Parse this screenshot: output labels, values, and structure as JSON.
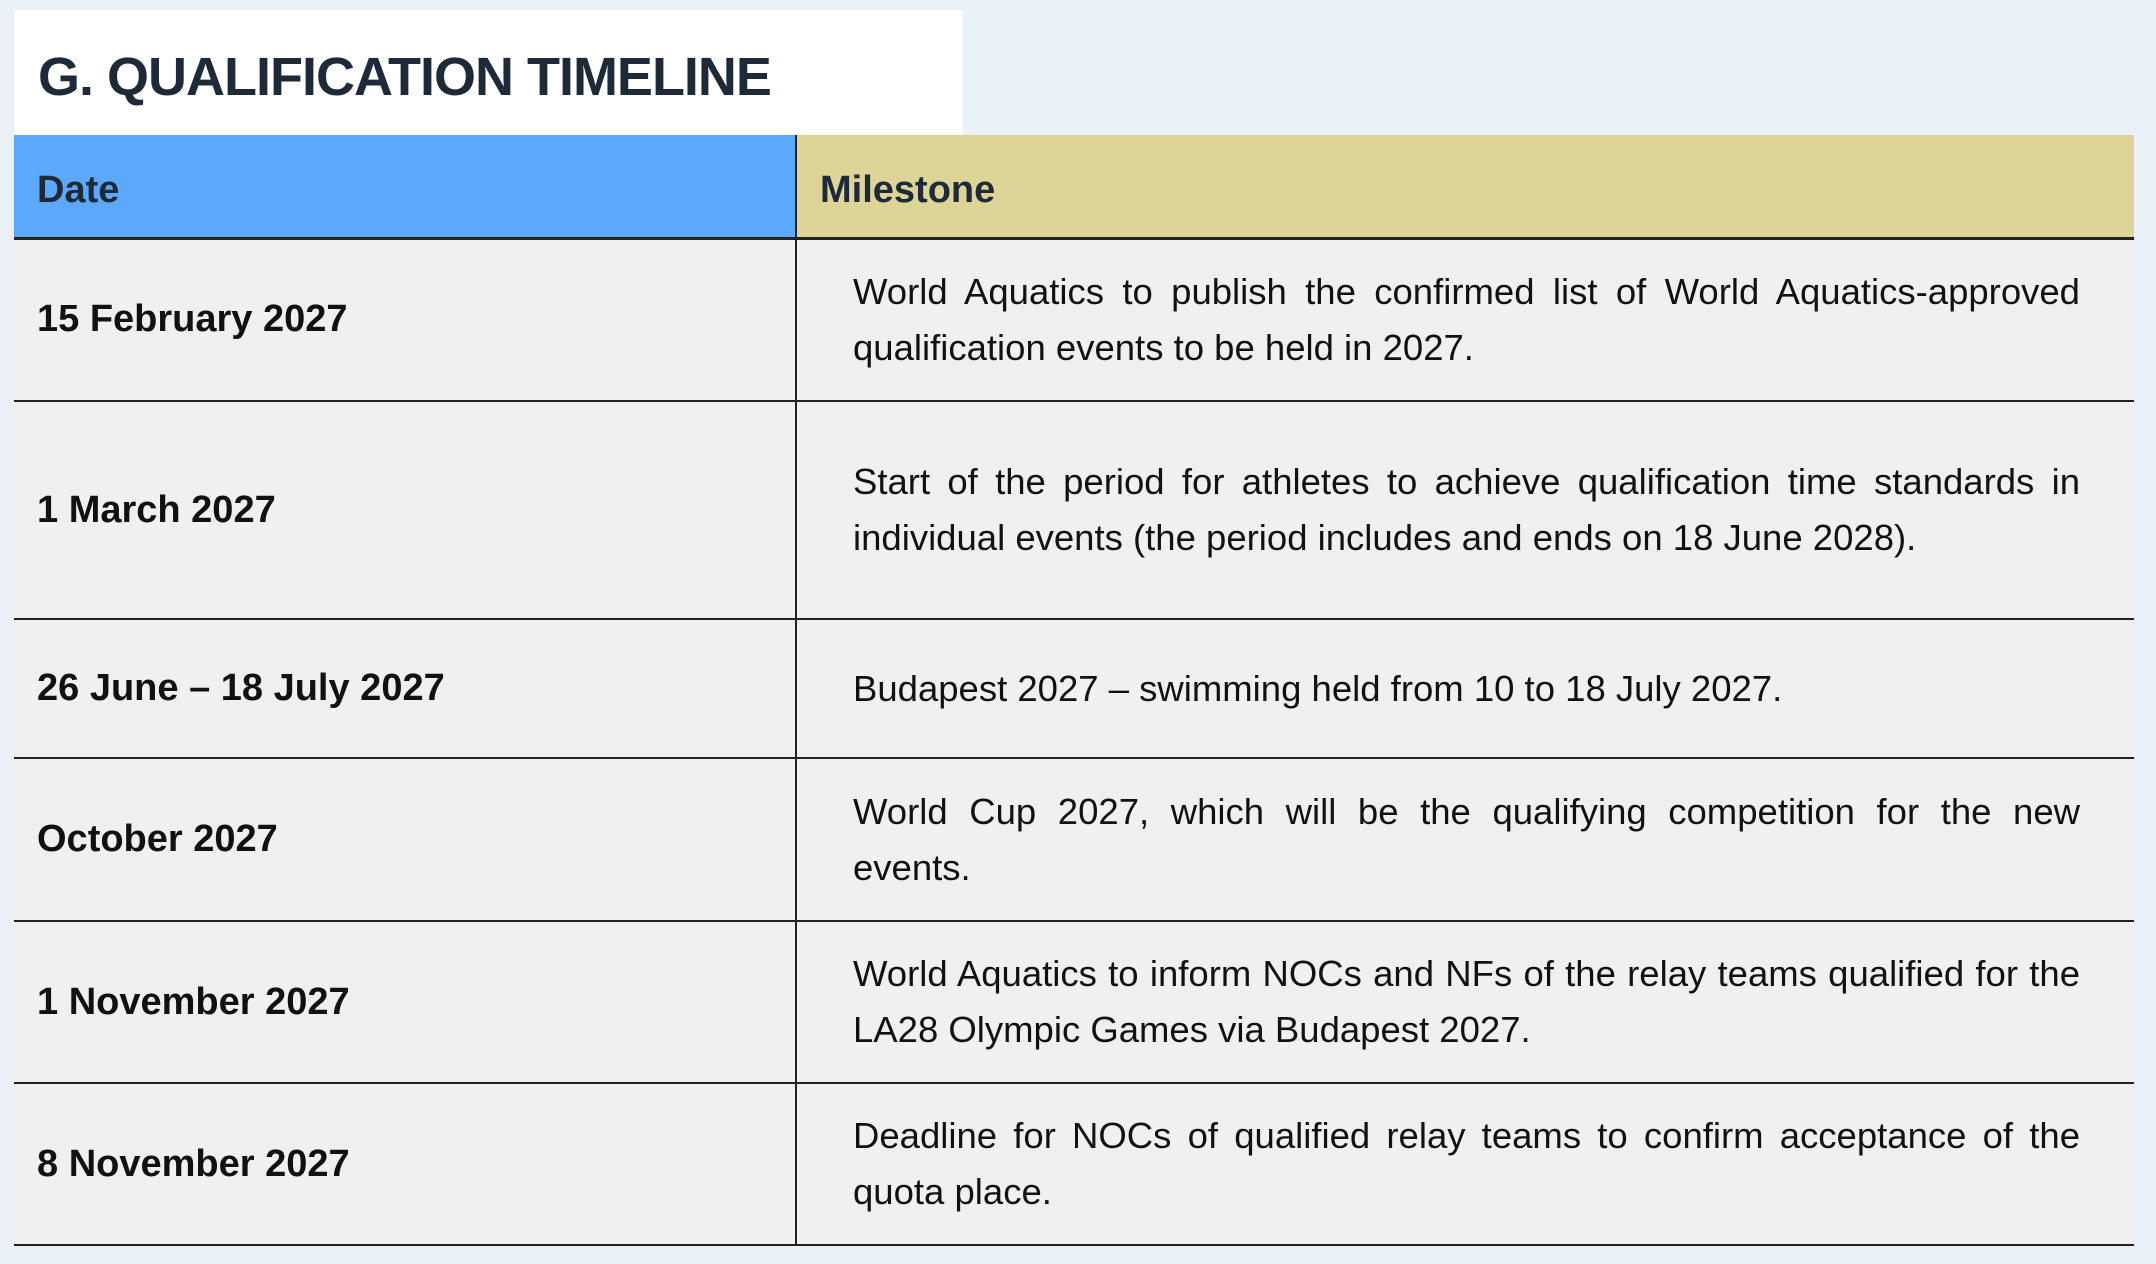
{
  "title": "G. QUALIFICATION TIMELINE",
  "colors": {
    "date_header": "#5ba8fc",
    "milestone_header": "#ddd597",
    "row_bg": "#f0f0f0",
    "page_bg": "#eaf1f9"
  },
  "table": {
    "headers": [
      "Date",
      "Milestone"
    ],
    "rows": [
      {
        "date": "15 February 2027",
        "milestone": "World Aquatics to publish the confirmed list of World Aquatics-approved qualification events to be held in 2027."
      },
      {
        "date": "1 March 2027",
        "milestone": "Start of the period for athletes to achieve qualification time standards in individual events (the period includes and ends on 18 June 2028)."
      },
      {
        "date": "26 June – 18 July 2027",
        "milestone": "Budapest 2027 – swimming held from 10 to 18 July 2027."
      },
      {
        "date": "October 2027",
        "milestone": "World Cup 2027, which will be the qualifying competition for the new events."
      },
      {
        "date": "1 November 2027",
        "milestone": "World Aquatics to inform NOCs and NFs of the relay teams qualified for the LA28 Olympic Games via Budapest 2027."
      },
      {
        "date": "8 November 2027",
        "milestone": "Deadline for NOCs of qualified relay teams to confirm acceptance of the quota place."
      }
    ]
  }
}
